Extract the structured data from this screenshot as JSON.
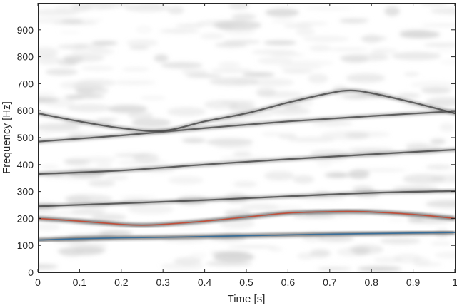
{
  "chart_data": {
    "type": "line",
    "title": "",
    "xlabel": "Time [s]",
    "ylabel": "Frequency [Hz]",
    "xlim": [
      0,
      1
    ],
    "ylim": [
      0,
      1000
    ],
    "x_ticks": [
      0,
      0.1,
      0.2,
      0.3,
      0.4,
      0.5,
      0.6,
      0.7,
      0.8,
      0.9,
      1
    ],
    "x_tick_labels": [
      "0",
      "0.1",
      "0.2",
      "0.3",
      "0.4",
      "0.5",
      "0.6",
      "0.7",
      "0.8",
      "0.9",
      "1"
    ],
    "y_ticks": [
      0,
      100,
      200,
      300,
      400,
      500,
      600,
      700,
      800,
      900
    ],
    "y_tick_labels": [
      "0",
      "100",
      "200",
      "300",
      "400",
      "500",
      "600",
      "700",
      "800",
      "900"
    ],
    "grid": false,
    "background": "spectrogram (grayscale)",
    "series": [
      {
        "color": "#3a6f9a",
        "x": [
          0,
          0.1,
          0.2,
          0.3,
          0.4,
          0.5,
          0.6,
          0.7,
          0.8,
          0.9,
          1
        ],
        "y": [
          120,
          125,
          128,
          130,
          133,
          136,
          139,
          142,
          144,
          146,
          148
        ]
      },
      {
        "color": "#c0503c",
        "x": [
          0,
          0.1,
          0.2,
          0.25,
          0.3,
          0.4,
          0.5,
          0.6,
          0.7,
          0.75,
          0.8,
          0.9,
          1
        ],
        "y": [
          200,
          190,
          178,
          175,
          178,
          190,
          205,
          220,
          225,
          226,
          224,
          215,
          200
        ]
      }
    ],
    "harmonics": [
      {
        "x": [
          0,
          0.2,
          0.4,
          0.6,
          0.8,
          1
        ],
        "y": [
          245,
          256,
          268,
          282,
          295,
          302
        ]
      },
      {
        "x": [
          0,
          0.2,
          0.4,
          0.6,
          0.8,
          1
        ],
        "y": [
          365,
          378,
          400,
          420,
          438,
          455
        ]
      },
      {
        "x": [
          0,
          0.2,
          0.4,
          0.6,
          0.8,
          1
        ],
        "y": [
          485,
          508,
          535,
          560,
          580,
          598
        ]
      },
      {
        "x": [
          0,
          0.1,
          0.2,
          0.3,
          0.4,
          0.5,
          0.6,
          0.7,
          0.75,
          0.8,
          0.9,
          1
        ],
        "y": [
          590,
          560,
          535,
          525,
          560,
          590,
          630,
          665,
          675,
          665,
          630,
          590
        ]
      }
    ]
  }
}
